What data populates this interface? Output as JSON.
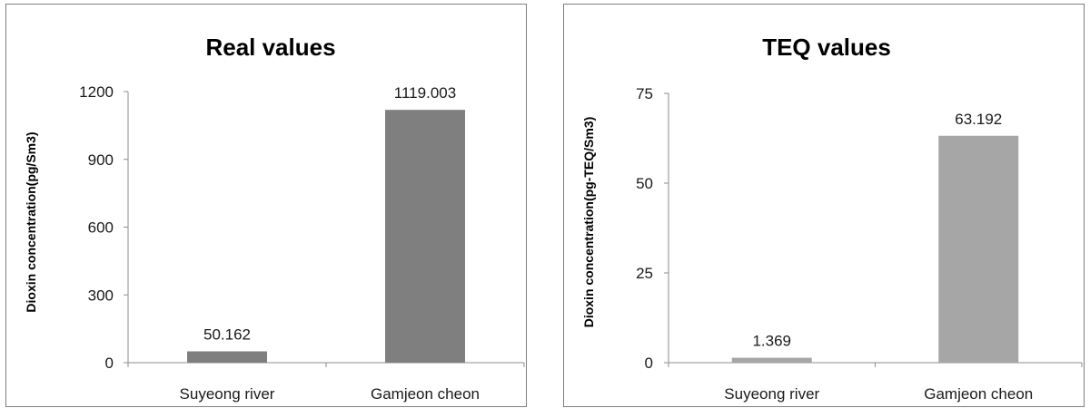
{
  "chart_data": [
    {
      "type": "bar",
      "title": "Real values",
      "ylabel": "Dioxin concentration(pg/Sm3)",
      "xlabel": "",
      "categories": [
        "Suyeong river",
        "Gamjeon cheon"
      ],
      "values": [
        50.162,
        1119.003
      ],
      "data_labels": [
        "50.162",
        "1119.003"
      ],
      "ylim": [
        0,
        1200
      ],
      "yticks": [
        0,
        300,
        600,
        900,
        1200
      ],
      "ytick_labels": [
        "0",
        "300",
        "600",
        "900",
        "1200"
      ],
      "grid": false,
      "legend": "none",
      "bar_color": "#7f7f7f"
    },
    {
      "type": "bar",
      "title": "TEQ values",
      "ylabel": "Dioxin concentration(pg-TEQ/Sm3)",
      "xlabel": "",
      "categories": [
        "Suyeong river",
        "Gamjeon cheon"
      ],
      "values": [
        1.369,
        63.192
      ],
      "data_labels": [
        "1.369",
        "63.192"
      ],
      "ylim": [
        0,
        75
      ],
      "yticks": [
        0,
        25,
        50,
        75
      ],
      "ytick_labels": [
        "0",
        "25",
        "50",
        "75"
      ],
      "grid": false,
      "legend": "none",
      "bar_color": "#a6a6a6"
    }
  ]
}
